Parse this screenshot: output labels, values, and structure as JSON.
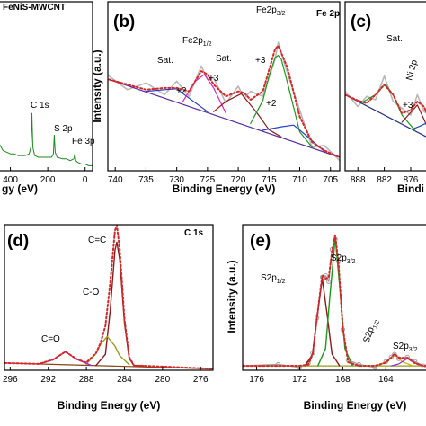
{
  "chart_data": [
    {
      "type": "line",
      "subtitle": "FeNiS-MWCNT",
      "xlabel": "gy (eV)",
      "xlim": [
        475,
        -40
      ],
      "ylim": [
        0,
        100
      ],
      "xticks": [
        400,
        200,
        0
      ],
      "annotations": [
        {
          "text": "C 1s",
          "color": "#000000"
        },
        {
          "text": "S 2p",
          "color": "#000000"
        },
        {
          "text": "Fe 3p",
          "color": "#000000"
        }
      ],
      "series": [
        {
          "color": "#1a8a1a",
          "width": 1,
          "x": [
            475,
            460,
            440,
            420,
            400,
            380,
            360,
            340,
            320,
            300,
            290,
            285,
            280,
            270,
            250,
            230,
            200,
            180,
            170,
            165,
            160,
            150,
            120,
            100,
            80,
            60,
            55,
            50,
            40,
            20,
            0,
            -20,
            -40
          ],
          "values": [
            20,
            16,
            12,
            11,
            10,
            10,
            9,
            9,
            9,
            10,
            14,
            34,
            14,
            9,
            8,
            8,
            8,
            8,
            10,
            21,
            11,
            8,
            7,
            7,
            6,
            7,
            10,
            6,
            5,
            4,
            4,
            3,
            3
          ]
        }
      ]
    },
    {
      "type": "line",
      "title": "(b)",
      "subtitle": "Fe 2p",
      "xlabel": "Binding Energy (eV)",
      "ylabel": "Intensity (a.u.)",
      "xlim": [
        741.2,
        703.5
      ],
      "ylim": [
        0,
        100
      ],
      "xticks": [
        740,
        735,
        730,
        725,
        720,
        715,
        710,
        705
      ],
      "annotations": [
        {
          "text": "Sat.",
          "color": "#1f3fbf"
        },
        {
          "text": "Fe2p",
          "sub": "1/2",
          "color": "#c0189f"
        },
        {
          "text": "Sat.",
          "color": "#8b1a1a"
        },
        {
          "text": "Fe2p",
          "sub": "3/2",
          "color": "#1a8a1a"
        },
        {
          "text": "+3",
          "color": "#c0189f"
        },
        {
          "text": "+2",
          "color": "#1f3fbf"
        },
        {
          "text": "+3",
          "color": "#1a8a1a"
        },
        {
          "text": "+2",
          "color": "#8b1a1a"
        }
      ],
      "series": [
        {
          "color": "#b8b8b8",
          "width": 1.6,
          "x": [
            741,
            738,
            735,
            732,
            730,
            728,
            726,
            725,
            724,
            722,
            720,
            719,
            718,
            716,
            714,
            713.5,
            712,
            710,
            708,
            706,
            703.5
          ],
          "values": [
            56,
            48,
            52,
            45,
            53,
            44,
            62,
            54,
            55,
            40,
            50,
            43,
            47,
            44,
            66,
            76,
            58,
            36,
            14,
            15,
            6
          ]
        },
        {
          "color": "#5a2ca0",
          "width": 1.2,
          "x": [
            741,
            703.5
          ],
          "values": [
            54,
            8
          ]
        },
        {
          "color": "#1f3fbf",
          "width": 1.2,
          "x": [
            735,
            732,
            730,
            728,
            725
          ],
          "values": [
            47,
            48,
            48.5,
            43,
            35
          ]
        },
        {
          "color": "#e020c0",
          "width": 1.2,
          "x": [
            729,
            727,
            725.5,
            724,
            722
          ],
          "values": [
            41,
            53,
            57,
            49,
            34
          ]
        },
        {
          "color": "#8b1a1a",
          "width": 1.2,
          "x": [
            724,
            722,
            719.5,
            717,
            715,
            713
          ],
          "values": [
            35,
            41,
            45.6,
            34.5,
            24.3,
            20
          ]
        },
        {
          "color": "#1a9a1a",
          "width": 1.2,
          "x": [
            718,
            716,
            715,
            714,
            713.5,
            713,
            712,
            710,
            708
          ],
          "values": [
            28,
            41.6,
            56,
            67,
            68.3,
            66,
            52.3,
            23,
            14
          ]
        },
        {
          "color": "#2244cc",
          "width": 1.2,
          "x": [
            716,
            713,
            711,
            709,
            706
          ],
          "values": [
            24,
            26,
            27,
            21,
            11.5
          ]
        },
        {
          "color": "#d62728",
          "width": 2,
          "dashed": true,
          "x": [
            741,
            738,
            735,
            732,
            730,
            728,
            726,
            725,
            724,
            722,
            720,
            719,
            718,
            716,
            714,
            713.5,
            712,
            710,
            708,
            706,
            703.5
          ],
          "values": [
            54,
            51,
            48,
            49,
            49,
            47,
            59,
            57,
            51,
            44,
            47,
            46,
            42,
            47,
            72,
            74,
            61,
            32,
            17,
            12,
            8
          ]
        }
      ]
    },
    {
      "type": "line",
      "title": "(c)",
      "xlabel": "Bindi",
      "xlim": [
        890.9,
        870.9
      ],
      "ylim": [
        0,
        100
      ],
      "xticks": [
        888,
        882,
        876
      ],
      "annotations": [
        {
          "text": "Sat.",
          "color": "#1a8a1a"
        },
        {
          "text": "Ni 2p",
          "color": "#d62728"
        },
        {
          "text": "+3",
          "color": "#8b1a1a"
        }
      ],
      "series": [
        {
          "color": "#b8b8b8",
          "width": 1.6,
          "x": [
            890.9,
            888,
            886,
            884,
            882,
            880,
            878,
            876,
            874.5,
            873,
            872,
            871
          ],
          "values": [
            47,
            38,
            44,
            42,
            56,
            41,
            37,
            33,
            45,
            35,
            34,
            23
          ]
        },
        {
          "color": "#1f2f80",
          "width": 1.2,
          "x": [
            890.9,
            870.9
          ],
          "values": [
            45,
            18
          ]
        },
        {
          "color": "#1a9a1a",
          "width": 1.2,
          "x": [
            887,
            884,
            882,
            881.5,
            880,
            878,
            875
          ],
          "values": [
            40.5,
            45,
            50.6,
            50.3,
            45,
            33,
            23.7
          ]
        },
        {
          "color": "#8b1a1a",
          "width": 1.2,
          "x": [
            878,
            876,
            874.5,
            873,
            871
          ],
          "values": [
            28.7,
            34.6,
            38.9,
            30.5,
            18.2
          ]
        },
        {
          "color": "#2244cc",
          "width": 1.2,
          "x": [
            875.5,
            874,
            872.5,
            871
          ],
          "values": [
            24.8,
            26.3,
            28.2,
            22.2
          ]
        },
        {
          "color": "#d62728",
          "width": 2,
          "dashed": true,
          "x": [
            890.9,
            888,
            886,
            884,
            882,
            880,
            878,
            876,
            874.5,
            873,
            872,
            871
          ],
          "values": [
            45,
            41.5,
            40,
            45,
            51,
            45,
            34,
            36,
            41,
            38,
            32,
            26
          ]
        }
      ]
    },
    {
      "type": "line",
      "title": "(d)",
      "subtitle": "C 1s",
      "xlabel": "Binding Energy (eV)",
      "xlim": [
        296.6,
        274.7
      ],
      "ylim": [
        0,
        100
      ],
      "xticks": [
        296,
        292,
        288,
        284,
        280,
        276
      ],
      "annotations": [
        {
          "text": "C=C",
          "color": "#8b1a1a"
        },
        {
          "text": "C-O",
          "color": "#9a9a1a"
        },
        {
          "text": "C=O",
          "color": "#8a2be2"
        }
      ],
      "series": [
        {
          "color": "#8b4513",
          "width": 1.2,
          "x": [
            296.6,
            274.7
          ],
          "values": [
            5,
            1
          ]
        },
        {
          "color": "#8b1a1a",
          "width": 1.4,
          "x": [
            287,
            286,
            285.5,
            285,
            284.8,
            284.5,
            284,
            283.5,
            283,
            282
          ],
          "values": [
            3.2,
            11,
            40.9,
            82.5,
            88,
            76.2,
            32.4,
            8,
            3.3,
            3.1
          ]
        },
        {
          "color": "#9a9a1a",
          "width": 1.4,
          "x": [
            288,
            287,
            286.5,
            285.8,
            285,
            284.5,
            283.5
          ],
          "values": [
            4.3,
            11.5,
            18,
            23.2,
            16.6,
            10,
            3.8
          ]
        },
        {
          "color": "#8a2be2",
          "width": 1.4,
          "x": [
            293,
            291.5,
            290.2,
            289,
            287.5
          ],
          "values": [
            4.3,
            7.2,
            12.8,
            7.5,
            3.4
          ]
        },
        {
          "color": "#d62728",
          "width": 2,
          "dashed": true,
          "x": [
            296.6,
            293,
            291.5,
            290.2,
            289,
            288,
            287,
            286.5,
            286,
            285.5,
            285,
            284.8,
            284.5,
            284,
            283.5,
            283,
            282,
            279,
            274.7
          ],
          "values": [
            5,
            4.4,
            7.3,
            12.8,
            7.6,
            5.3,
            11.6,
            19,
            30.5,
            59.8,
            96,
            99.5,
            83.3,
            35.2,
            8.9,
            3.3,
            3.1,
            2.3,
            1
          ]
        }
      ]
    },
    {
      "type": "line",
      "title": "(e)",
      "xlabel": "Binding Energy (eV)",
      "ylabel": "Intensity (a.u.)",
      "xlim": [
        177.3,
        159.6
      ],
      "ylim": [
        0,
        100
      ],
      "xticks": [
        176,
        172,
        168,
        164
      ],
      "annotations": [
        {
          "text": "S2p",
          "sub": "1/2",
          "color": "#8b1a1a"
        },
        {
          "text": "S2p",
          "sub": "3/2",
          "color": "#1a8a1a"
        },
        {
          "text": "S2p",
          "sub": "1/2",
          "color": "#b8a000"
        },
        {
          "text": "S2p",
          "sub": "3/2",
          "color": "#8a2be2"
        }
      ],
      "series": [
        {
          "color": "#a0a0a0",
          "width": 1.4,
          "markers": true,
          "x": [
            177.3,
            174,
            172,
            171.2,
            170.8,
            170.4,
            169.9,
            169.6,
            169.3,
            169,
            168.7,
            168.4,
            168,
            167.5,
            166.5,
            165,
            164,
            163.5,
            163.2,
            162.8,
            162,
            161.3,
            160.5,
            159.6
          ],
          "values": [
            3,
            4,
            2,
            5,
            12,
            36,
            64,
            65,
            61,
            83,
            90,
            75,
            28,
            7,
            4,
            2,
            6,
            9,
            11,
            8,
            9,
            6,
            3,
            3
          ]
        },
        {
          "color": "#9a9a1a",
          "width": 1.2,
          "x": [
            177.3,
            159.6
          ],
          "values": [
            3,
            3
          ]
        },
        {
          "color": "#8b1a1a",
          "width": 1.4,
          "x": [
            171.5,
            170.8,
            170.4,
            169.9,
            169.4,
            169,
            168.3
          ],
          "values": [
            3.1,
            11.1,
            35.4,
            63,
            35.4,
            11.1,
            3.1
          ]
        },
        {
          "color": "#1a9a1a",
          "width": 1.4,
          "x": [
            170.3,
            169.6,
            169.2,
            168.7,
            168.2,
            167.8,
            167.1
          ],
          "values": [
            3.2,
            14.9,
            50.5,
            91,
            50.5,
            14.9,
            3.2
          ]
        },
        {
          "color": "#c8b400",
          "width": 1.2,
          "x": [
            165,
            164,
            163.2,
            162.5,
            161.5
          ],
          "values": [
            3.1,
            5.2,
            11,
            6,
            3
          ]
        },
        {
          "color": "#8a2be2",
          "width": 1.2,
          "x": [
            163.5,
            162.8,
            162,
            161.3,
            160.5
          ],
          "values": [
            3.05,
            4.4,
            8,
            4.9,
            3.05
          ]
        },
        {
          "color": "#d62728",
          "width": 2,
          "dashed": true,
          "x": [
            177.3,
            174,
            172,
            171.2,
            170.8,
            170.4,
            169.9,
            169.6,
            169.3,
            169,
            168.7,
            168.4,
            168,
            167.5,
            166.5,
            165,
            164,
            163.5,
            163.2,
            162.8,
            162,
            161.3,
            160.5,
            159.6
          ],
          "values": [
            3,
            3,
            3.1,
            3.9,
            11.1,
            35.5,
            65.5,
            62.9,
            63.9,
            81.5,
            92.7,
            73.6,
            29.2,
            5.5,
            3,
            3.1,
            5.2,
            8.65,
            11.3,
            8.6,
            8.45,
            4.9,
            3.05,
            3
          ]
        }
      ]
    }
  ]
}
